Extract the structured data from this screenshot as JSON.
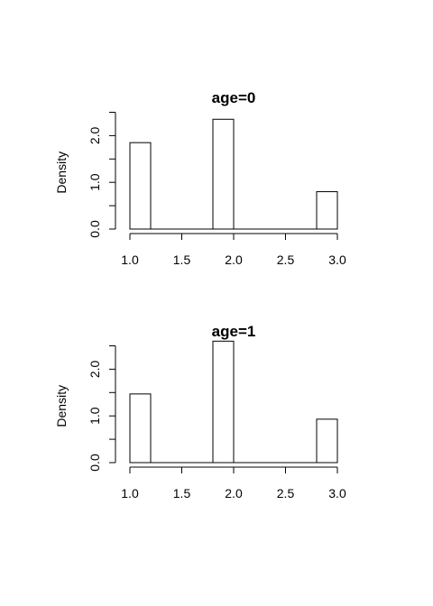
{
  "chart_data": [
    {
      "type": "bar",
      "title": "age=0",
      "xlabel": "",
      "ylabel": "Density",
      "bins": [
        {
          "x0": 1.0,
          "x1": 1.2,
          "value": 1.85
        },
        {
          "x0": 1.8,
          "x1": 2.0,
          "value": 2.35
        },
        {
          "x0": 2.8,
          "x1": 3.0,
          "value": 0.8
        }
      ],
      "xlim": [
        1.0,
        3.0
      ],
      "ylim": [
        0,
        2.5
      ],
      "x_ticks": [
        1.0,
        1.5,
        2.0,
        2.5,
        3.0
      ],
      "x_tick_labels": [
        "1.0",
        "1.5",
        "2.0",
        "2.5",
        "3.0"
      ],
      "y_ticks": [
        0,
        0.5,
        1.0,
        1.5,
        2.0,
        2.5
      ],
      "y_tick_labels": [
        "0.0",
        "",
        "1.0",
        "",
        "2.0",
        ""
      ],
      "grid": false
    },
    {
      "type": "bar",
      "title": "age=1",
      "xlabel": "",
      "ylabel": "Density",
      "bins": [
        {
          "x0": 1.0,
          "x1": 1.2,
          "value": 1.47
        },
        {
          "x0": 1.8,
          "x1": 2.0,
          "value": 2.6
        },
        {
          "x0": 2.8,
          "x1": 3.0,
          "value": 0.93
        }
      ],
      "xlim": [
        1.0,
        3.0
      ],
      "ylim": [
        0,
        2.5
      ],
      "x_ticks": [
        1.0,
        1.5,
        2.0,
        2.5,
        3.0
      ],
      "x_tick_labels": [
        "1.0",
        "1.5",
        "2.0",
        "2.5",
        "3.0"
      ],
      "y_ticks": [
        0,
        0.5,
        1.0,
        1.5,
        2.0,
        2.5
      ],
      "y_tick_labels": [
        "0.0",
        "",
        "1.0",
        "",
        "2.0",
        ""
      ],
      "grid": false
    }
  ]
}
